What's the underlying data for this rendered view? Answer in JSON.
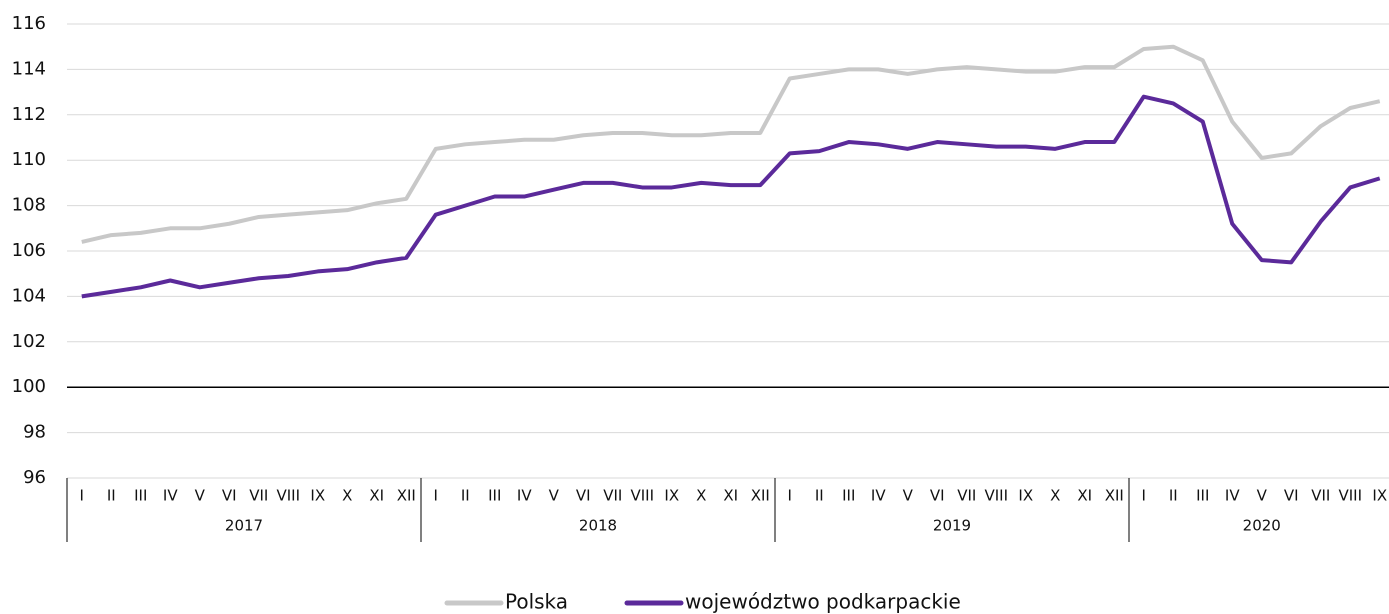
{
  "chart_data": {
    "type": "line",
    "groups": [
      {
        "label": "2017",
        "months": [
          "I",
          "II",
          "III",
          "IV",
          "V",
          "VI",
          "VII",
          "VIII",
          "IX",
          "X",
          "XI",
          "XII"
        ]
      },
      {
        "label": "2018",
        "months": [
          "I",
          "II",
          "III",
          "IV",
          "V",
          "VI",
          "VII",
          "VIII",
          "IX",
          "X",
          "XI",
          "XII"
        ]
      },
      {
        "label": "2019",
        "months": [
          "I",
          "II",
          "III",
          "IV",
          "V",
          "VI",
          "VII",
          "VIII",
          "IX",
          "X",
          "XI",
          "XII"
        ]
      },
      {
        "label": "2020",
        "months": [
          "I",
          "II",
          "III",
          "IV",
          "V",
          "VI",
          "VII",
          "VIII",
          "IX"
        ]
      }
    ],
    "series": [
      {
        "name": "Polska",
        "color": "#c8c8c8",
        "values": [
          106.4,
          106.7,
          106.8,
          107.0,
          107.0,
          107.2,
          107.5,
          107.6,
          107.7,
          107.8,
          108.1,
          108.3,
          110.5,
          110.7,
          110.8,
          110.9,
          110.9,
          111.1,
          111.2,
          111.2,
          111.1,
          111.1,
          111.2,
          111.2,
          113.6,
          113.8,
          114.0,
          114.0,
          113.8,
          114.0,
          114.1,
          114.0,
          113.9,
          113.9,
          114.1,
          114.1,
          114.9,
          115.0,
          114.4,
          111.7,
          110.1,
          110.3,
          111.5,
          112.3,
          112.6
        ]
      },
      {
        "name": "województwo podkarpackie",
        "color": "#5b2a9a",
        "values": [
          104.0,
          104.2,
          104.4,
          104.7,
          104.4,
          104.6,
          104.8,
          104.9,
          105.1,
          105.2,
          105.5,
          105.7,
          107.6,
          108.0,
          108.4,
          108.4,
          108.7,
          109.0,
          109.0,
          108.8,
          108.8,
          109.0,
          108.9,
          108.9,
          110.3,
          110.4,
          110.8,
          110.7,
          110.5,
          110.8,
          110.7,
          110.6,
          110.6,
          110.5,
          110.8,
          110.8,
          112.8,
          112.5,
          111.7,
          107.2,
          105.6,
          105.5,
          107.3,
          108.8,
          109.2
        ]
      }
    ],
    "ylim": [
      96,
      116
    ],
    "yticks": [
      96,
      98,
      100,
      102,
      104,
      106,
      108,
      110,
      112,
      114,
      116
    ],
    "reference_line": 100,
    "grid": true,
    "legend": "bottom"
  }
}
